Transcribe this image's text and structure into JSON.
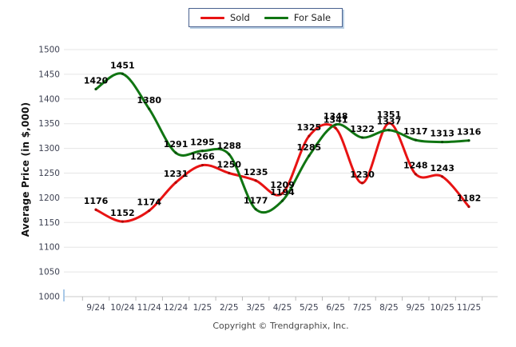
{
  "chart_data": {
    "type": "line",
    "title": "",
    "categories": [
      "9/24",
      "10/24",
      "11/24",
      "12/24",
      "1/25",
      "2/25",
      "3/25",
      "4/25",
      "5/25",
      "6/25",
      "7/25",
      "8/25",
      "9/25",
      "10/25",
      "11/25"
    ],
    "series": [
      {
        "name": "Sold",
        "color": "#e81313",
        "marker_color": "#a80808",
        "values": [
          1176,
          1152,
          1174,
          1231,
          1266,
          1250,
          1235,
          1209,
          1325,
          1341,
          1230,
          1351,
          1248,
          1243,
          1182
        ]
      },
      {
        "name": "For Sale",
        "color": "#107512",
        "marker_color": "#0a4d0b",
        "values": [
          1420,
          1451,
          1380,
          1291,
          1295,
          1288,
          1177,
          1194,
          1285,
          1348,
          1322,
          1337,
          1317,
          1313,
          1316
        ]
      }
    ],
    "xlabel": "",
    "ylabel": "Average Price (in $,000)",
    "ylim": [
      1000,
      1500
    ],
    "ytick_step": 50,
    "grid": true,
    "legend_position": "top-center",
    "point_labels": true
  },
  "footer": {
    "copyright": "Copyright © Trendgraphix, Inc."
  }
}
